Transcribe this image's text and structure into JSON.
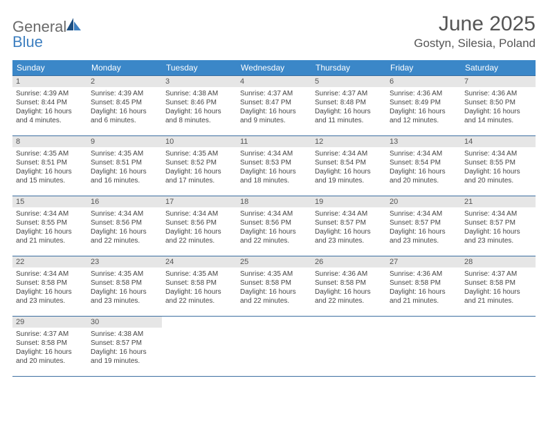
{
  "logo": {
    "text_gray": "General",
    "text_blue": "Blue"
  },
  "title": "June 2025",
  "location": "Gostyn, Silesia, Poland",
  "colors": {
    "header_bar": "#3b87c8",
    "divider": "#3b6ea0",
    "daynum_bg": "#e6e6e6",
    "text_main": "#444444",
    "text_muted": "#555555",
    "logo_gray": "#6a6a6a",
    "logo_blue": "#3d7fc0",
    "white": "#ffffff"
  },
  "typography": {
    "title_fontsize": 30,
    "location_fontsize": 17,
    "weekday_fontsize": 12,
    "daynum_fontsize": 11,
    "body_fontsize": 10
  },
  "weekdays": [
    "Sunday",
    "Monday",
    "Tuesday",
    "Wednesday",
    "Thursday",
    "Friday",
    "Saturday"
  ],
  "weeks": [
    [
      {
        "day": "1",
        "sunrise": "Sunrise: 4:39 AM",
        "sunset": "Sunset: 8:44 PM",
        "daylight": "Daylight: 16 hours and 4 minutes."
      },
      {
        "day": "2",
        "sunrise": "Sunrise: 4:39 AM",
        "sunset": "Sunset: 8:45 PM",
        "daylight": "Daylight: 16 hours and 6 minutes."
      },
      {
        "day": "3",
        "sunrise": "Sunrise: 4:38 AM",
        "sunset": "Sunset: 8:46 PM",
        "daylight": "Daylight: 16 hours and 8 minutes."
      },
      {
        "day": "4",
        "sunrise": "Sunrise: 4:37 AM",
        "sunset": "Sunset: 8:47 PM",
        "daylight": "Daylight: 16 hours and 9 minutes."
      },
      {
        "day": "5",
        "sunrise": "Sunrise: 4:37 AM",
        "sunset": "Sunset: 8:48 PM",
        "daylight": "Daylight: 16 hours and 11 minutes."
      },
      {
        "day": "6",
        "sunrise": "Sunrise: 4:36 AM",
        "sunset": "Sunset: 8:49 PM",
        "daylight": "Daylight: 16 hours and 12 minutes."
      },
      {
        "day": "7",
        "sunrise": "Sunrise: 4:36 AM",
        "sunset": "Sunset: 8:50 PM",
        "daylight": "Daylight: 16 hours and 14 minutes."
      }
    ],
    [
      {
        "day": "8",
        "sunrise": "Sunrise: 4:35 AM",
        "sunset": "Sunset: 8:51 PM",
        "daylight": "Daylight: 16 hours and 15 minutes."
      },
      {
        "day": "9",
        "sunrise": "Sunrise: 4:35 AM",
        "sunset": "Sunset: 8:51 PM",
        "daylight": "Daylight: 16 hours and 16 minutes."
      },
      {
        "day": "10",
        "sunrise": "Sunrise: 4:35 AM",
        "sunset": "Sunset: 8:52 PM",
        "daylight": "Daylight: 16 hours and 17 minutes."
      },
      {
        "day": "11",
        "sunrise": "Sunrise: 4:34 AM",
        "sunset": "Sunset: 8:53 PM",
        "daylight": "Daylight: 16 hours and 18 minutes."
      },
      {
        "day": "12",
        "sunrise": "Sunrise: 4:34 AM",
        "sunset": "Sunset: 8:54 PM",
        "daylight": "Daylight: 16 hours and 19 minutes."
      },
      {
        "day": "13",
        "sunrise": "Sunrise: 4:34 AM",
        "sunset": "Sunset: 8:54 PM",
        "daylight": "Daylight: 16 hours and 20 minutes."
      },
      {
        "day": "14",
        "sunrise": "Sunrise: 4:34 AM",
        "sunset": "Sunset: 8:55 PM",
        "daylight": "Daylight: 16 hours and 20 minutes."
      }
    ],
    [
      {
        "day": "15",
        "sunrise": "Sunrise: 4:34 AM",
        "sunset": "Sunset: 8:55 PM",
        "daylight": "Daylight: 16 hours and 21 minutes."
      },
      {
        "day": "16",
        "sunrise": "Sunrise: 4:34 AM",
        "sunset": "Sunset: 8:56 PM",
        "daylight": "Daylight: 16 hours and 22 minutes."
      },
      {
        "day": "17",
        "sunrise": "Sunrise: 4:34 AM",
        "sunset": "Sunset: 8:56 PM",
        "daylight": "Daylight: 16 hours and 22 minutes."
      },
      {
        "day": "18",
        "sunrise": "Sunrise: 4:34 AM",
        "sunset": "Sunset: 8:56 PM",
        "daylight": "Daylight: 16 hours and 22 minutes."
      },
      {
        "day": "19",
        "sunrise": "Sunrise: 4:34 AM",
        "sunset": "Sunset: 8:57 PM",
        "daylight": "Daylight: 16 hours and 23 minutes."
      },
      {
        "day": "20",
        "sunrise": "Sunrise: 4:34 AM",
        "sunset": "Sunset: 8:57 PM",
        "daylight": "Daylight: 16 hours and 23 minutes."
      },
      {
        "day": "21",
        "sunrise": "Sunrise: 4:34 AM",
        "sunset": "Sunset: 8:57 PM",
        "daylight": "Daylight: 16 hours and 23 minutes."
      }
    ],
    [
      {
        "day": "22",
        "sunrise": "Sunrise: 4:34 AM",
        "sunset": "Sunset: 8:58 PM",
        "daylight": "Daylight: 16 hours and 23 minutes."
      },
      {
        "day": "23",
        "sunrise": "Sunrise: 4:35 AM",
        "sunset": "Sunset: 8:58 PM",
        "daylight": "Daylight: 16 hours and 23 minutes."
      },
      {
        "day": "24",
        "sunrise": "Sunrise: 4:35 AM",
        "sunset": "Sunset: 8:58 PM",
        "daylight": "Daylight: 16 hours and 22 minutes."
      },
      {
        "day": "25",
        "sunrise": "Sunrise: 4:35 AM",
        "sunset": "Sunset: 8:58 PM",
        "daylight": "Daylight: 16 hours and 22 minutes."
      },
      {
        "day": "26",
        "sunrise": "Sunrise: 4:36 AM",
        "sunset": "Sunset: 8:58 PM",
        "daylight": "Daylight: 16 hours and 22 minutes."
      },
      {
        "day": "27",
        "sunrise": "Sunrise: 4:36 AM",
        "sunset": "Sunset: 8:58 PM",
        "daylight": "Daylight: 16 hours and 21 minutes."
      },
      {
        "day": "28",
        "sunrise": "Sunrise: 4:37 AM",
        "sunset": "Sunset: 8:58 PM",
        "daylight": "Daylight: 16 hours and 21 minutes."
      }
    ],
    [
      {
        "day": "29",
        "sunrise": "Sunrise: 4:37 AM",
        "sunset": "Sunset: 8:58 PM",
        "daylight": "Daylight: 16 hours and 20 minutes."
      },
      {
        "day": "30",
        "sunrise": "Sunrise: 4:38 AM",
        "sunset": "Sunset: 8:57 PM",
        "daylight": "Daylight: 16 hours and 19 minutes."
      },
      null,
      null,
      null,
      null,
      null
    ]
  ]
}
